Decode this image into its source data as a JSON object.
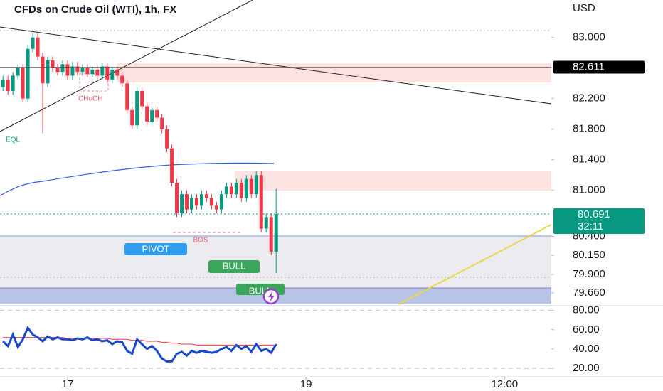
{
  "chart_data": {
    "type": "candlestick",
    "title": "CFDs on Crude Oil (WTI), 1h, FX",
    "currency": "USD",
    "x": [
      -13,
      -12,
      -11,
      -10,
      -9,
      -8,
      -7,
      -6,
      -5,
      -4,
      -3,
      -2,
      -1,
      0,
      1,
      2,
      3,
      4,
      5,
      6,
      7,
      8,
      9,
      10,
      11,
      12,
      13,
      14,
      15,
      16,
      17,
      18,
      19,
      20,
      21,
      22,
      23,
      24,
      25,
      26,
      27,
      28,
      29,
      30,
      31,
      32,
      33,
      34,
      35,
      36,
      37,
      38,
      39,
      40,
      41,
      42
    ],
    "open": [
      82.35,
      82.45,
      82.3,
      82.5,
      82.6,
      82.2,
      82.85,
      83.0,
      82.75,
      82.4,
      82.7,
      82.6,
      82.55,
      82.65,
      82.5,
      82.62,
      82.55,
      82.6,
      82.52,
      82.58,
      82.5,
      82.62,
      82.45,
      82.58,
      82.5,
      82.4,
      82.05,
      81.85,
      82.3,
      82.1,
      81.9,
      82.05,
      81.95,
      81.8,
      81.55,
      81.1,
      80.7,
      80.95,
      80.75,
      80.9,
      80.8,
      80.95,
      80.9,
      80.8,
      80.75,
      80.95,
      81.05,
      80.95,
      81.1,
      80.9,
      81.15,
      80.95,
      81.2,
      80.5,
      80.65,
      80.2
    ],
    "high": [
      82.5,
      82.5,
      82.55,
      82.65,
      82.65,
      82.9,
      83.05,
      83.05,
      82.8,
      82.75,
      82.75,
      82.65,
      82.7,
      82.7,
      82.68,
      82.68,
      82.65,
      82.65,
      82.62,
      82.62,
      82.66,
      82.66,
      82.62,
      82.62,
      82.55,
      82.45,
      82.1,
      82.35,
      82.35,
      82.15,
      82.1,
      82.1,
      82.0,
      81.85,
      81.6,
      81.15,
      81.0,
      81.0,
      80.95,
      80.95,
      81.0,
      81.0,
      80.95,
      80.85,
      81.0,
      81.1,
      81.1,
      81.15,
      81.15,
      81.2,
      81.2,
      81.25,
      81.25,
      80.7,
      80.7,
      81.02
    ],
    "low": [
      82.3,
      82.25,
      82.25,
      82.45,
      82.15,
      82.15,
      82.8,
      82.7,
      81.75,
      82.35,
      82.55,
      82.5,
      82.5,
      82.45,
      82.45,
      82.5,
      82.5,
      82.48,
      82.48,
      82.45,
      82.45,
      82.4,
      82.4,
      82.45,
      82.35,
      82.0,
      81.8,
      81.8,
      82.05,
      81.85,
      81.85,
      81.9,
      81.75,
      81.5,
      81.05,
      80.65,
      80.65,
      80.7,
      80.7,
      80.75,
      80.75,
      80.85,
      80.75,
      80.7,
      80.7,
      80.9,
      80.9,
      80.9,
      80.85,
      80.85,
      80.9,
      80.9,
      80.45,
      80.45,
      80.15,
      79.92
    ],
    "close": [
      82.45,
      82.3,
      82.5,
      82.6,
      82.2,
      82.85,
      83.0,
      82.75,
      82.4,
      82.7,
      82.6,
      82.55,
      82.65,
      82.5,
      82.62,
      82.55,
      82.6,
      82.52,
      82.58,
      82.5,
      82.62,
      82.45,
      82.58,
      82.5,
      82.4,
      82.05,
      81.85,
      82.3,
      82.1,
      81.9,
      82.05,
      81.95,
      81.8,
      81.55,
      81.1,
      80.7,
      80.95,
      80.75,
      80.9,
      80.8,
      80.95,
      80.9,
      80.8,
      80.75,
      80.95,
      81.05,
      80.95,
      81.1,
      80.9,
      81.15,
      80.95,
      81.2,
      80.5,
      80.65,
      80.2,
      80.69
    ],
    "up_color": "#089981",
    "down_color": "#f23645",
    "xlim": [
      -13.6,
      97.4
    ],
    "xticks": [
      {
        "value": 0,
        "label": "17"
      },
      {
        "value": 48,
        "label": "19"
      },
      {
        "value": 88,
        "label": "12:00"
      }
    ],
    "ylim": [
      79.51,
      83.49
    ],
    "yticks": [
      {
        "value": 83,
        "label": "83.000"
      },
      {
        "value": 82.2,
        "label": "82.200"
      },
      {
        "value": 81.8,
        "label": "81.800"
      },
      {
        "value": 81.4,
        "label": "81.400"
      },
      {
        "value": 81,
        "label": "81.000"
      },
      {
        "value": 80.4,
        "label": "80.400"
      },
      {
        "value": 80.15,
        "label": "80.150"
      },
      {
        "value": 79.9,
        "label": "79.900"
      },
      {
        "value": 79.66,
        "label": "79.660"
      }
    ],
    "price_line": {
      "value": 82.611,
      "label": "82.611"
    },
    "last_price": {
      "value": 80.691,
      "label": "80.691",
      "countdown": "32:11"
    },
    "annotations": [
      "CHoCH",
      "EQL",
      "BOS",
      "PIVOT",
      "BULL",
      "BULL"
    ],
    "oscillator": {
      "type": "line",
      "ylim": [
        11,
        85
      ],
      "yticks": [
        {
          "value": 80,
          "label": "80.00"
        },
        {
          "value": 60,
          "label": "60.00"
        },
        {
          "value": 40,
          "label": "40.00"
        },
        {
          "value": 20,
          "label": "20.00"
        }
      ],
      "series": [
        {
          "color": "#1848cc",
          "values": [
            48,
            43,
            55,
            42,
            50,
            62,
            55,
            52,
            48,
            53,
            50,
            52,
            50,
            50,
            49,
            51,
            50,
            52,
            49,
            50,
            48,
            49,
            45,
            48,
            47,
            38,
            35,
            50,
            45,
            40,
            43,
            38,
            30,
            27,
            27,
            35,
            37,
            33,
            38,
            36,
            38,
            37,
            36,
            37,
            40,
            42,
            38,
            44,
            40,
            43,
            37,
            45,
            38,
            40,
            36,
            45
          ]
        },
        {
          "color": "#f23645",
          "values": [
            52,
            52,
            52,
            52,
            52,
            52,
            52,
            52,
            52,
            52,
            52,
            52,
            52,
            51,
            51,
            51,
            51,
            51,
            51,
            51,
            51,
            51,
            50,
            50,
            50,
            50,
            49,
            49,
            49,
            48,
            48,
            48,
            47,
            47,
            46,
            46,
            45,
            45,
            45,
            44,
            44,
            44,
            44,
            44,
            44,
            44,
            44,
            44,
            44,
            44,
            44,
            44,
            44,
            44,
            44,
            44
          ]
        }
      ]
    }
  }
}
